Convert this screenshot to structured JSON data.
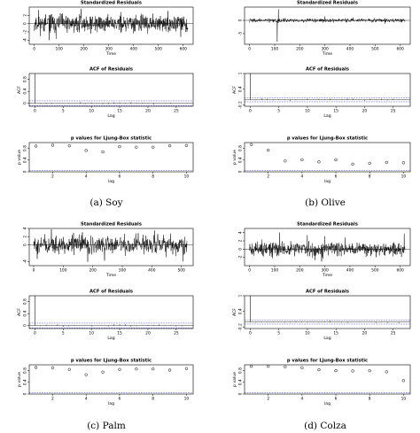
{
  "figure": {
    "captions": [
      "(a) Soy",
      "(b) Olive",
      "(c) Palm",
      "(d) Colza"
    ]
  },
  "chart_data": [
    {
      "id": "soy-residuals",
      "type": "line",
      "title": "Standardized Residuals",
      "xlabel": "Time",
      "ylabel": "",
      "xticks": [
        0,
        100,
        200,
        300,
        400,
        500,
        600
      ],
      "yticks": [
        -4,
        -2,
        0,
        2
      ],
      "xlim": [
        -20,
        640
      ],
      "ylim": [
        -5,
        4
      ],
      "n": 620,
      "amplitude": 1.0,
      "seed": 11,
      "spikes": [
        [
          60,
          -4.0
        ],
        [
          105,
          2.5
        ],
        [
          350,
          2.8
        ],
        [
          590,
          -3.2
        ]
      ]
    },
    {
      "id": "soy-acf",
      "type": "bar",
      "title": "ACF of Residuals",
      "xlabel": "Lag",
      "ylabel": "ACF",
      "xticks": [
        0,
        5,
        10,
        15,
        20,
        25
      ],
      "yticks": [
        0.0,
        0.4,
        0.8
      ],
      "xlim": [
        -1,
        28
      ],
      "ylim": [
        -0.1,
        1.0
      ],
      "conf": 0.08,
      "maxlag": 27,
      "seed": 21
    },
    {
      "id": "soy-ljung",
      "type": "scatter",
      "title": "p values for Ljung-Box statistic",
      "xlabel": "lag",
      "ylabel": "p value",
      "xticks": [
        2,
        4,
        6,
        8,
        10
      ],
      "yticks": [
        0.0,
        0.4,
        0.8
      ],
      "xlim": [
        0.6,
        10.4
      ],
      "ylim": [
        0,
        1
      ],
      "threshold": 0.05,
      "x": [
        1,
        2,
        3,
        4,
        5,
        6,
        7,
        8,
        9,
        10
      ],
      "y": [
        0.88,
        0.91,
        0.89,
        0.73,
        0.68,
        0.86,
        0.84,
        0.84,
        0.89,
        0.9
      ]
    },
    {
      "id": "olive-residuals",
      "type": "line",
      "title": "Standardized Residuals",
      "xlabel": "Time",
      "ylabel": "",
      "xticks": [
        0,
        100,
        200,
        300,
        400,
        500,
        600
      ],
      "yticks": [
        -5,
        0
      ],
      "xlim": [
        -20,
        640
      ],
      "ylim": [
        -9,
        5
      ],
      "n": 620,
      "amplitude": 0.35,
      "seed": 31,
      "spikes": [
        [
          110,
          -8.0
        ],
        [
          115,
          4.2
        ],
        [
          300,
          1.5
        ],
        [
          540,
          -1.2
        ]
      ]
    },
    {
      "id": "olive-acf",
      "type": "bar",
      "title": "ACF of Residuals",
      "xlabel": "Lag",
      "ylabel": "ACF",
      "xticks": [
        0,
        5,
        10,
        15,
        20,
        25
      ],
      "yticks": [
        -0.2,
        0.4,
        1.0
      ],
      "xlim": [
        -1,
        28
      ],
      "ylim": [
        -0.25,
        1.0
      ],
      "conf": 0.08,
      "maxlag": 27,
      "seed": 41
    },
    {
      "id": "olive-ljung",
      "type": "scatter",
      "title": "p values for Ljung-Box statistic",
      "xlabel": "lag",
      "ylabel": "p value",
      "xticks": [
        2,
        4,
        6,
        8,
        10
      ],
      "yticks": [
        0.0,
        0.4,
        0.8
      ],
      "xlim": [
        0.6,
        10.4
      ],
      "ylim": [
        0,
        1
      ],
      "threshold": 0.05,
      "x": [
        1,
        2,
        3,
        4,
        5,
        6,
        7,
        8,
        9,
        10
      ],
      "y": [
        0.93,
        0.74,
        0.37,
        0.41,
        0.34,
        0.41,
        0.26,
        0.29,
        0.32,
        0.31
      ]
    },
    {
      "id": "palm-residuals",
      "type": "line",
      "title": "Standardized Residuals",
      "xlabel": "Time",
      "ylabel": "",
      "xticks": [
        0,
        100,
        200,
        300,
        400,
        500
      ],
      "yticks": [
        -4,
        0,
        2,
        4
      ],
      "xlim": [
        -15,
        540
      ],
      "ylim": [
        -5,
        4
      ],
      "n": 520,
      "amplitude": 1.1,
      "seed": 51,
      "spikes": [
        [
          60,
          3.8
        ],
        [
          240,
          -3.8
        ],
        [
          410,
          3.5
        ],
        [
          505,
          -4.0
        ]
      ]
    },
    {
      "id": "palm-acf",
      "type": "bar",
      "title": "ACF of Residuals",
      "xlabel": "Lag",
      "ylabel": "ACF",
      "xticks": [
        0,
        5,
        10,
        15,
        20,
        25
      ],
      "yticks": [
        0.0,
        0.4,
        0.8
      ],
      "xlim": [
        -1,
        28
      ],
      "ylim": [
        -0.1,
        1.0
      ],
      "conf": 0.08,
      "maxlag": 27,
      "seed": 61
    },
    {
      "id": "palm-ljung",
      "type": "scatter",
      "title": "p values for Ljung-Box statistic",
      "xlabel": "lag",
      "ylabel": "p value",
      "xticks": [
        2,
        4,
        6,
        8,
        10
      ],
      "yticks": [
        0.0,
        0.4,
        0.8
      ],
      "xlim": [
        0.6,
        10.4
      ],
      "ylim": [
        0,
        1
      ],
      "threshold": 0.05,
      "x": [
        1,
        2,
        3,
        4,
        5,
        6,
        7,
        8,
        9,
        10
      ],
      "y": [
        0.91,
        0.9,
        0.84,
        0.66,
        0.75,
        0.84,
        0.86,
        0.86,
        0.82,
        0.87
      ]
    },
    {
      "id": "colza-residuals",
      "type": "line",
      "title": "Standardized Residuals",
      "xlabel": "Time",
      "ylabel": "",
      "xticks": [
        0,
        100,
        200,
        300,
        400,
        500,
        600
      ],
      "yticks": [
        -2,
        0,
        2,
        4
      ],
      "xlim": [
        -20,
        640
      ],
      "ylim": [
        -4,
        5
      ],
      "n": 620,
      "amplitude": 0.75,
      "seed": 71,
      "spikes": [
        [
          120,
          4.0
        ],
        [
          230,
          3.4
        ],
        [
          300,
          3.1
        ],
        [
          380,
          2.8
        ]
      ]
    },
    {
      "id": "colza-acf",
      "type": "bar",
      "title": "ACF of Residuals",
      "xlabel": "Lag",
      "ylabel": "ACF",
      "xticks": [
        0,
        5,
        10,
        15,
        20,
        25
      ],
      "yticks": [
        -0.2,
        0.4,
        1.0
      ],
      "xlim": [
        -1,
        28
      ],
      "ylim": [
        -0.25,
        1.0
      ],
      "conf": 0.08,
      "maxlag": 27,
      "seed": 81
    },
    {
      "id": "colza-ljung",
      "type": "scatter",
      "title": "p values for Ljung-Box statistic",
      "xlabel": "lag",
      "ylabel": "p value",
      "xticks": [
        2,
        4,
        6,
        8,
        10
      ],
      "yticks": [
        0.0,
        0.4,
        0.8
      ],
      "xlim": [
        0.6,
        10.4
      ],
      "ylim": [
        0,
        1
      ],
      "threshold": 0.05,
      "x": [
        1,
        2,
        3,
        4,
        5,
        6,
        7,
        8,
        9,
        10
      ],
      "y": [
        0.95,
        0.95,
        0.93,
        0.9,
        0.83,
        0.8,
        0.79,
        0.8,
        0.76,
        0.46
      ]
    }
  ]
}
